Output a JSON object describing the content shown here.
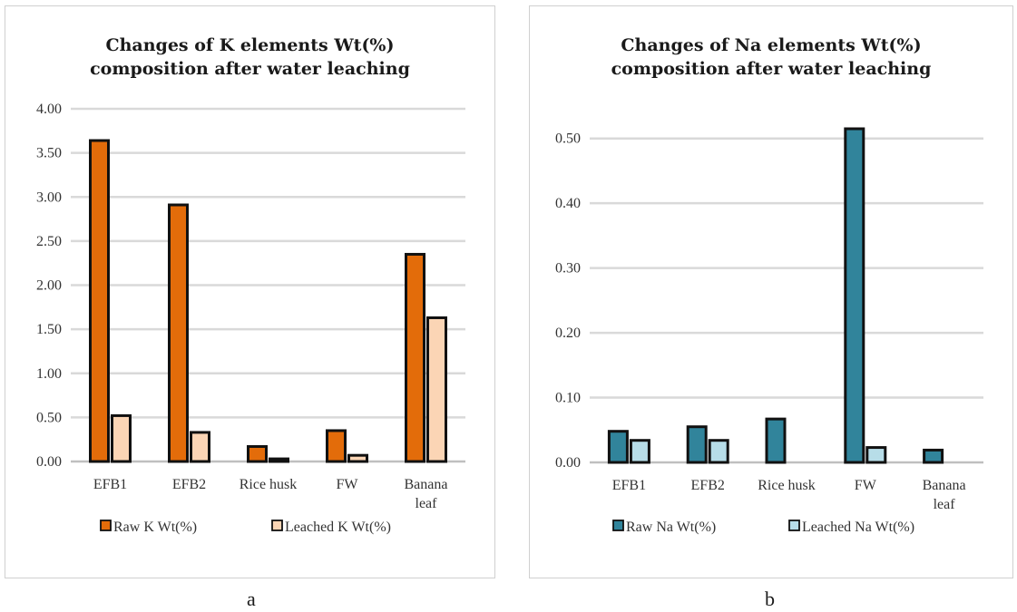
{
  "chart_data": [
    {
      "type": "bar",
      "title_lines": [
        "Changes of K elements Wt(%)",
        "composition after water leaching"
      ],
      "categories": [
        [
          "EFB1"
        ],
        [
          "EFB2"
        ],
        [
          "Rice husk"
        ],
        [
          "FW"
        ],
        [
          "Banana",
          "leaf"
        ]
      ],
      "series": [
        {
          "name": "Raw K Wt(%)",
          "values": [
            3.64,
            2.91,
            0.17,
            0.35,
            2.35
          ],
          "color": "#e36c0a"
        },
        {
          "name": "Leached K Wt(%)",
          "values": [
            0.52,
            0.33,
            0.03,
            0.07,
            1.63
          ],
          "color": "#fbd5b5"
        }
      ],
      "ylim": [
        0,
        4
      ],
      "yticks": [
        "0.00",
        "0.50",
        "1.00",
        "1.50",
        "2.00",
        "2.50",
        "3.00",
        "3.50",
        "4.00"
      ],
      "grid": true,
      "legend": "bottom"
    },
    {
      "type": "bar",
      "title_lines": [
        "Changes of Na elements Wt(%)",
        "composition after water leaching"
      ],
      "categories": [
        [
          "EFB1"
        ],
        [
          "EFB2"
        ],
        [
          "Rice husk"
        ],
        [
          "FW"
        ],
        [
          "Banana",
          "leaf"
        ]
      ],
      "series": [
        {
          "name": "Raw Na Wt(%)",
          "values": [
            0.048,
            0.055,
            0.067,
            0.515,
            0.019
          ],
          "color": "#31849b"
        },
        {
          "name": "Leached Na Wt(%)",
          "values": [
            0.034,
            0.034,
            null,
            0.023,
            null
          ],
          "color": "#b7dde8"
        }
      ],
      "ylim": [
        0,
        0.55
      ],
      "yticks": [
        "0.00",
        "0.10",
        "0.20",
        "0.30",
        "0.40",
        "0.50"
      ],
      "grid": true,
      "legend": "bottom"
    }
  ],
  "panel_labels": [
    "a",
    "b"
  ]
}
